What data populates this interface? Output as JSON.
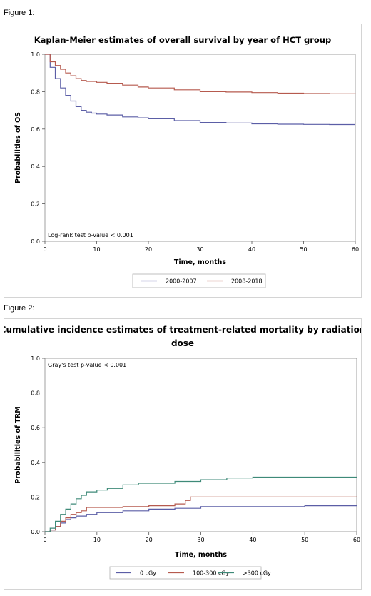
{
  "figure_labels": [
    "Figure 1:",
    "Figure 2:"
  ],
  "colors": {
    "blue": "#5b5ea6",
    "red": "#b65a4e",
    "green": "#3e8a78"
  },
  "chart_data": [
    {
      "type": "line",
      "title": "Kaplan-Meier estimates of overall survival by year of HCT group",
      "xlabel": "Time, months",
      "ylabel": "Probabilities of OS",
      "xlim": [
        0,
        60
      ],
      "ylim": [
        0,
        1
      ],
      "xticks": [
        "0",
        "10",
        "20",
        "30",
        "40",
        "50",
        "60"
      ],
      "yticks": [
        "0.0",
        "0.2",
        "0.4",
        "0.6",
        "0.8",
        "1.0"
      ],
      "annotation": "Log-rank test p-value  < 0.001",
      "legend_position": "bottom",
      "series": [
        {
          "name": "2000-2007",
          "color": "#5b5ea6",
          "points": [
            [
              0,
              1.0
            ],
            [
              1,
              0.93
            ],
            [
              2,
              0.87
            ],
            [
              3,
              0.82
            ],
            [
              4,
              0.78
            ],
            [
              5,
              0.75
            ],
            [
              6,
              0.72
            ],
            [
              7,
              0.7
            ],
            [
              8,
              0.69
            ],
            [
              9,
              0.685
            ],
            [
              10,
              0.68
            ],
            [
              12,
              0.675
            ],
            [
              15,
              0.665
            ],
            [
              18,
              0.66
            ],
            [
              20,
              0.655
            ],
            [
              25,
              0.645
            ],
            [
              30,
              0.635
            ],
            [
              35,
              0.632
            ],
            [
              40,
              0.628
            ],
            [
              45,
              0.626
            ],
            [
              50,
              0.625
            ],
            [
              55,
              0.624
            ],
            [
              60,
              0.624
            ]
          ]
        },
        {
          "name": "2008-2018",
          "color": "#b65a4e",
          "points": [
            [
              0,
              1.0
            ],
            [
              1,
              0.96
            ],
            [
              2,
              0.94
            ],
            [
              3,
              0.92
            ],
            [
              4,
              0.9
            ],
            [
              5,
              0.885
            ],
            [
              6,
              0.87
            ],
            [
              7,
              0.86
            ],
            [
              8,
              0.855
            ],
            [
              10,
              0.85
            ],
            [
              12,
              0.845
            ],
            [
              15,
              0.835
            ],
            [
              18,
              0.825
            ],
            [
              20,
              0.82
            ],
            [
              25,
              0.81
            ],
            [
              30,
              0.8
            ],
            [
              35,
              0.798
            ],
            [
              40,
              0.795
            ],
            [
              45,
              0.792
            ],
            [
              50,
              0.79
            ],
            [
              55,
              0.789
            ],
            [
              60,
              0.788
            ]
          ]
        }
      ]
    },
    {
      "type": "line",
      "title": "Cumulative incidence estimates of treatment-related mortality by radiation dose",
      "title_lines": [
        "Cumulative incidence estimates of treatment-related mortality by radiation",
        "dose"
      ],
      "xlabel": "Time, months",
      "ylabel": "Probabilities of TRM",
      "xlim": [
        0,
        60
      ],
      "ylim": [
        0,
        1
      ],
      "xticks": [
        "0",
        "10",
        "20",
        "30",
        "40",
        "50",
        "60"
      ],
      "yticks": [
        "0.0",
        "0.2",
        "0.4",
        "0.6",
        "0.8",
        "1.0"
      ],
      "annotation": "Gray's test p-value  < 0.001",
      "legend_position": "bottom",
      "series": [
        {
          "name": "0 cGy",
          "color": "#5b5ea6",
          "points": [
            [
              0,
              0
            ],
            [
              1,
              0.01
            ],
            [
              2,
              0.03
            ],
            [
              3,
              0.05
            ],
            [
              4,
              0.07
            ],
            [
              5,
              0.08
            ],
            [
              6,
              0.09
            ],
            [
              8,
              0.1
            ],
            [
              10,
              0.11
            ],
            [
              15,
              0.12
            ],
            [
              20,
              0.13
            ],
            [
              25,
              0.135
            ],
            [
              30,
              0.145
            ],
            [
              40,
              0.145
            ],
            [
              50,
              0.15
            ],
            [
              60,
              0.15
            ]
          ]
        },
        {
          "name": "100-300 cGy",
          "color": "#b65a4e",
          "points": [
            [
              0,
              0
            ],
            [
              1,
              0.01
            ],
            [
              2,
              0.03
            ],
            [
              3,
              0.06
            ],
            [
              4,
              0.08
            ],
            [
              5,
              0.1
            ],
            [
              6,
              0.11
            ],
            [
              7,
              0.12
            ],
            [
              8,
              0.14
            ],
            [
              10,
              0.14
            ],
            [
              15,
              0.145
            ],
            [
              20,
              0.15
            ],
            [
              25,
              0.16
            ],
            [
              27,
              0.18
            ],
            [
              28,
              0.2
            ],
            [
              60,
              0.2
            ]
          ]
        },
        {
          "name": ">300 cGy",
          "color": "#3e8a78",
          "points": [
            [
              0,
              0
            ],
            [
              1,
              0.02
            ],
            [
              2,
              0.06
            ],
            [
              3,
              0.1
            ],
            [
              4,
              0.13
            ],
            [
              5,
              0.16
            ],
            [
              6,
              0.19
            ],
            [
              7,
              0.21
            ],
            [
              8,
              0.23
            ],
            [
              10,
              0.24
            ],
            [
              12,
              0.25
            ],
            [
              15,
              0.27
            ],
            [
              18,
              0.28
            ],
            [
              20,
              0.28
            ],
            [
              25,
              0.29
            ],
            [
              30,
              0.3
            ],
            [
              35,
              0.31
            ],
            [
              40,
              0.315
            ],
            [
              50,
              0.315
            ],
            [
              60,
              0.315
            ]
          ]
        }
      ]
    }
  ]
}
